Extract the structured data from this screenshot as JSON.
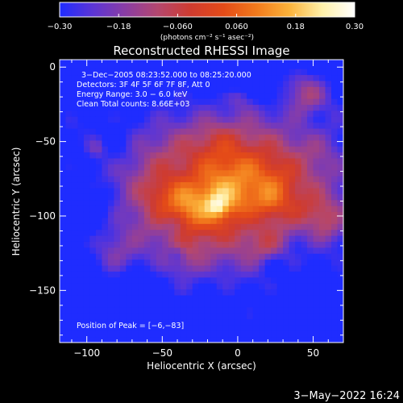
{
  "colorbar": {
    "min_label": "−0.30",
    "ticks": [
      "−0.18",
      "−0.060",
      "0.060",
      "0.18"
    ],
    "max_label": "0.30",
    "units_label": "(photons cm⁻² s⁻¹ asec⁻²)",
    "palette": [
      "#1f2cff",
      "#5b35d6",
      "#8a3da4",
      "#b4476e",
      "#cf3b2f",
      "#e44b18",
      "#f27a1c",
      "#fbb23a",
      "#fff0a8",
      "#ffffff"
    ]
  },
  "chart_data": {
    "type": "heatmap",
    "title": "Reconstructed RHESSI Image",
    "xlabel": "Heliocentric X (arcsec)",
    "ylabel": "Heliocentric Y (arcsec)",
    "xlim": [
      -118,
      70
    ],
    "ylim": [
      -185,
      5
    ],
    "x_ticks": [
      -100,
      -50,
      0,
      50
    ],
    "y_ticks": [
      0,
      -50,
      -100,
      -150
    ],
    "x_tick_labels": [
      "−100",
      "−50",
      "0",
      "50"
    ],
    "y_tick_labels": [
      "0",
      "−50",
      "−100",
      "−150"
    ],
    "info_lines": [
      "3−Dec−2005 08:23:52.000 to 08:25:20.000",
      "Detectors: 3F 4F 5F 6F 7F 8F, Att 0",
      "Energy Range: 3.0 − 6.0 keV",
      "Clean     Total counts: 8.66E+03"
    ],
    "peak_label": "Position of Peak = [−6,−83]",
    "peak": [
      -6,
      -83
    ]
  },
  "footer": {
    "date": "3−May−2022 16:24"
  }
}
